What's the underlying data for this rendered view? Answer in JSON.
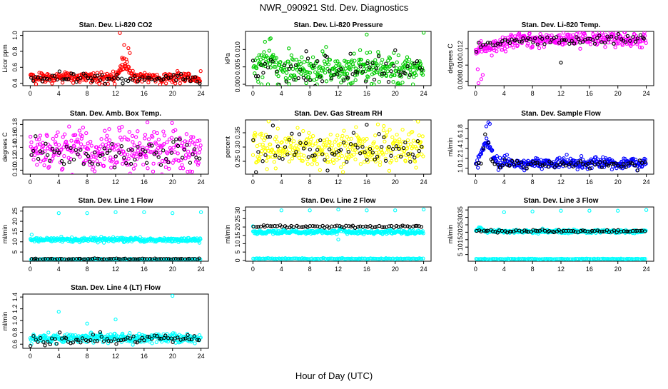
{
  "figure_title": "NWR_090921  Std. Dev. Diagnostics",
  "xlabel": "Hour of Day (UTC)",
  "colors": {
    "red": "#ff0000",
    "green": "#00cc00",
    "magenta": "#ff00ff",
    "yellow": "#ffff00",
    "blue": "#0000ff",
    "cyan": "#00ffff",
    "black": "#000000"
  },
  "chart_data": [
    {
      "type": "scatter",
      "title": "Stan. Dev. Li-820 CO2",
      "ylabel": "Licor ppm",
      "xlim": [
        0,
        24
      ],
      "ylim": [
        0.37,
        1.05
      ],
      "x_ticks": [
        "0",
        "4",
        "8",
        "12",
        "16",
        "20",
        "24"
      ],
      "y_ticks": [
        0.4,
        0.6,
        0.8,
        1.0
      ],
      "y_tick_labels": [
        "0.4",
        "0.6",
        "0.8",
        "1.0"
      ],
      "series": [
        {
          "name": "sample",
          "color": "#ff0000",
          "n": 330,
          "base": 0.47,
          "noise": 0.035,
          "features": [
            {
              "type": "bump",
              "center": 13.2,
              "width": 0.8,
              "amp": 0.18
            }
          ],
          "outliers": [
            [
              12.6,
              1.03
            ],
            [
              13.2,
              0.88
            ],
            [
              13.8,
              0.84
            ],
            [
              14.0,
              0.78
            ],
            [
              12.9,
              0.72
            ],
            [
              13.5,
              0.7
            ]
          ]
        },
        {
          "name": "reference",
          "color": "#000000",
          "n": 72,
          "base": 0.46,
          "noise": 0.03,
          "features": [],
          "outliers": []
        }
      ]
    },
    {
      "type": "scatter",
      "title": "Stan. Dev. Li-820 Pressure",
      "ylabel": "kPa",
      "xlim": [
        0,
        24
      ],
      "ylim": [
        -0.0004,
        0.0152
      ],
      "x_ticks": [
        "0",
        "4",
        "8",
        "12",
        "16",
        "20",
        "24"
      ],
      "y_ticks": [
        0.0,
        0.005,
        0.01
      ],
      "y_tick_labels": [
        "0.000",
        "0.005",
        "0.010"
      ],
      "series": [
        {
          "name": "sample",
          "color": "#00cc00",
          "n": 330,
          "base": 0.0045,
          "noise": 0.0026,
          "features": [
            {
              "type": "bump",
              "center": 2.0,
              "width": 1.4,
              "amp": 0.0035
            }
          ],
          "outliers": [
            [
              2.5,
              0.0132
            ],
            [
              16.0,
              0.0143
            ],
            [
              24.0,
              0.0148
            ],
            [
              1.2,
              0.0
            ],
            [
              3.5,
              0.0
            ],
            [
              9.0,
              0.0
            ],
            [
              13.5,
              0.0
            ],
            [
              17.0,
              0.0
            ],
            [
              20.5,
              0.0
            ],
            [
              22.5,
              0.0
            ]
          ]
        },
        {
          "name": "reference",
          "color": "#000000",
          "n": 72,
          "base": 0.004,
          "noise": 0.0025,
          "features": [],
          "outliers": [
            [
              7.5,
              0.0095
            ]
          ]
        }
      ]
    },
    {
      "type": "scatter",
      "title": "Stan. Dev. Li-820 Temp.",
      "ylabel": "degrees C",
      "xlim": [
        0,
        24
      ],
      "ylim": [
        0.0075,
        0.0141
      ],
      "x_ticks": [
        "0",
        "4",
        "8",
        "12",
        "16",
        "20",
        "24"
      ],
      "y_ticks": [
        0.008,
        0.01,
        0.012
      ],
      "y_tick_labels": [
        "0.008",
        "0.010",
        "0.012"
      ],
      "series": [
        {
          "name": "sample",
          "color": "#ff00ff",
          "n": 330,
          "base": 0.0131,
          "noise": 0.00045,
          "features": [
            {
              "type": "ramp",
              "from": 0.0,
              "to": 6.0,
              "start": 0.0119,
              "end": 0.0131
            }
          ],
          "outliers": [
            [
              0.4,
              0.0078
            ],
            [
              0.8,
              0.0083
            ],
            [
              1.0,
              0.0088
            ],
            [
              0.3,
              0.0095
            ]
          ]
        },
        {
          "name": "reference",
          "color": "#000000",
          "n": 72,
          "base": 0.0131,
          "noise": 0.0003,
          "features": [
            {
              "type": "ramp",
              "from": 0.0,
              "to": 6.0,
              "start": 0.0121,
              "end": 0.0131
            }
          ],
          "outliers": [
            [
              12.0,
              0.0103
            ]
          ]
        }
      ]
    },
    {
      "type": "scatter",
      "title": "Stan. Dev. Amb. Box Temp.",
      "ylabel": "degrees C",
      "xlim": [
        0,
        24
      ],
      "ylim": [
        0.093,
        0.188
      ],
      "x_ticks": [
        "0",
        "4",
        "8",
        "12",
        "16",
        "20",
        "24"
      ],
      "y_ticks": [
        0.1,
        0.12,
        0.14,
        0.16,
        0.18
      ],
      "y_tick_labels": [
        "0.10",
        "0.12",
        "0.14",
        "0.16",
        "0.18"
      ],
      "series": [
        {
          "name": "sample",
          "color": "#ff00ff",
          "n": 330,
          "base": 0.136,
          "noise": 0.018,
          "features": [],
          "outliers": []
        },
        {
          "name": "reference",
          "color": "#000000",
          "n": 72,
          "base": 0.13,
          "noise": 0.012,
          "features": [],
          "outliers": []
        }
      ]
    },
    {
      "type": "scatter",
      "title": "Stan. Dev. Gas Stream RH",
      "ylabel": "percent",
      "xlim": [
        0,
        24
      ],
      "ylim": [
        0.205,
        0.395
      ],
      "x_ticks": [
        "0",
        "4",
        "8",
        "12",
        "16",
        "20",
        "24"
      ],
      "y_ticks": [
        0.25,
        0.3,
        0.35
      ],
      "y_tick_labels": [
        "0.25",
        "0.30",
        "0.35"
      ],
      "series": [
        {
          "name": "sample",
          "color": "#ffff00",
          "n": 330,
          "base": 0.295,
          "noise": 0.035,
          "features": [],
          "outliers": [
            [
              2.2,
              0.39
            ]
          ]
        },
        {
          "name": "reference",
          "color": "#000000",
          "n": 72,
          "base": 0.29,
          "noise": 0.03,
          "features": [],
          "outliers": [
            [
              16.0,
              0.378
            ]
          ]
        }
      ]
    },
    {
      "type": "scatter",
      "title": "Stan. Dev. Sample Flow",
      "ylabel": "ml/min",
      "xlim": [
        0,
        24
      ],
      "ylim": [
        0.88,
        1.98
      ],
      "x_ticks": [
        "0",
        "4",
        "8",
        "12",
        "16",
        "20",
        "24"
      ],
      "y_ticks": [
        1.0,
        1.2,
        1.4,
        1.6,
        1.8
      ],
      "y_tick_labels": [
        "1.0",
        "1.2",
        "1.4",
        "1.6",
        "1.8"
      ],
      "series": [
        {
          "name": "sample",
          "color": "#0000ff",
          "n": 330,
          "base": 1.1,
          "noise": 0.055,
          "features": [
            {
              "type": "bump",
              "center": 1.6,
              "width": 0.9,
              "amp": 0.42
            }
          ],
          "outliers": [
            [
              1.8,
              1.93
            ],
            [
              1.5,
              1.85
            ],
            [
              2.0,
              1.9
            ]
          ]
        },
        {
          "name": "reference",
          "color": "#000000",
          "n": 72,
          "base": 1.09,
          "noise": 0.045,
          "features": [
            {
              "type": "bump",
              "center": 1.5,
              "width": 0.5,
              "amp": 0.6
            }
          ],
          "outliers": []
        }
      ]
    },
    {
      "type": "scatter",
      "title": "Stan. Dev. Line 1 Flow",
      "ylabel": "ml/min",
      "xlim": [
        0,
        24
      ],
      "ylim": [
        0.5,
        27
      ],
      "x_ticks": [
        "0",
        "4",
        "8",
        "12",
        "16",
        "20",
        "24"
      ],
      "y_ticks": [
        5,
        10,
        15,
        20,
        25
      ],
      "y_tick_labels": [
        "5",
        "10",
        "15",
        "20",
        "25"
      ],
      "series": [
        {
          "name": "sample",
          "color": "#00ffff",
          "n": 330,
          "base": 11.0,
          "noise": 0.55,
          "features": [],
          "outliers": [
            [
              0.2,
              13.5
            ],
            [
              4.0,
              24.0
            ],
            [
              8.0,
              24.0
            ],
            [
              12.0,
              24.5
            ],
            [
              16.0,
              24.5
            ],
            [
              20.0,
              24.0
            ],
            [
              24.0,
              24.5
            ]
          ]
        },
        {
          "name": "line-low",
          "color": "#00ffff",
          "n": 140,
          "base": 1.4,
          "noise": 0.12,
          "features": [],
          "outliers": []
        },
        {
          "name": "reference",
          "color": "#000000",
          "n": 72,
          "base": 1.6,
          "noise": 0.15,
          "features": [],
          "outliers": []
        }
      ]
    },
    {
      "type": "scatter",
      "title": "Stan. Dev. Line 2 Flow",
      "ylabel": "ml/min",
      "xlim": [
        0,
        24
      ],
      "ylim": [
        -0.5,
        32
      ],
      "x_ticks": [
        "0",
        "4",
        "8",
        "12",
        "16",
        "20",
        "24"
      ],
      "y_ticks": [
        0,
        5,
        10,
        15,
        20,
        25,
        30
      ],
      "y_tick_labels": [
        "0",
        "5",
        "10",
        "15",
        "20",
        "25",
        "30"
      ],
      "series": [
        {
          "name": "sample",
          "color": "#00ffff",
          "n": 330,
          "base": 17.0,
          "noise": 0.6,
          "features": [
            {
              "type": "bump",
              "center": 12.5,
              "width": 0.4,
              "amp": 2.0
            }
          ],
          "outliers": [
            [
              0.0,
              20.5
            ],
            [
              4.0,
              30.0
            ],
            [
              8.0,
              30.0
            ],
            [
              12.0,
              30.5
            ],
            [
              16.0,
              30.0
            ],
            [
              20.0,
              30.0
            ],
            [
              24.0,
              30.5
            ],
            [
              12.0,
              12.5
            ]
          ]
        },
        {
          "name": "line-low",
          "color": "#00ffff",
          "n": 140,
          "base": 1.0,
          "noise": 0.15,
          "features": [],
          "outliers": []
        },
        {
          "name": "reference",
          "color": "#000000",
          "n": 72,
          "base": 20.3,
          "noise": 0.35,
          "features": [],
          "outliers": []
        }
      ]
    },
    {
      "type": "scatter",
      "title": "Stan. Dev. Line 3 Flow",
      "ylabel": "ml/min",
      "xlim": [
        0,
        24
      ],
      "ylim": [
        0.5,
        37
      ],
      "x_ticks": [
        "0",
        "4",
        "8",
        "12",
        "16",
        "20",
        "24"
      ],
      "y_ticks": [
        5,
        10,
        15,
        20,
        25,
        30,
        35
      ],
      "y_tick_labels": [
        "5",
        "10",
        "15",
        "20",
        "25",
        "30",
        "35"
      ],
      "series": [
        {
          "name": "sample",
          "color": "#00ffff",
          "n": 330,
          "base": 20.5,
          "noise": 0.55,
          "features": [
            {
              "type": "bump",
              "center": 0.6,
              "width": 0.5,
              "amp": 2.5
            }
          ],
          "outliers": [
            [
              4.0,
              33.5
            ],
            [
              8.0,
              34.0
            ],
            [
              12.0,
              34.5
            ],
            [
              16.0,
              34.5
            ],
            [
              20.0,
              34.5
            ],
            [
              24.0,
              35.0
            ]
          ]
        },
        {
          "name": "line-low",
          "color": "#00ffff",
          "n": 140,
          "base": 2.0,
          "noise": 0.12,
          "features": [],
          "outliers": []
        },
        {
          "name": "reference",
          "color": "#000000",
          "n": 72,
          "base": 20.8,
          "noise": 0.4,
          "features": [],
          "outliers": []
        }
      ]
    },
    {
      "type": "scatter",
      "title": "Stan. Dev. Line 4 (LT) Flow",
      "ylabel": "ml/min",
      "xlim": [
        0,
        24
      ],
      "ylim": [
        0.53,
        1.45
      ],
      "x_ticks": [
        "0",
        "4",
        "8",
        "12",
        "16",
        "20",
        "24"
      ],
      "y_ticks": [
        0.6,
        0.8,
        1.0,
        1.2,
        1.4
      ],
      "y_tick_labels": [
        "0.6",
        "0.8",
        "1.0",
        "1.2",
        "1.4"
      ],
      "series": [
        {
          "name": "sample",
          "color": "#00ffff",
          "n": 330,
          "base": 0.7,
          "noise": 0.04,
          "features": [],
          "outliers": [
            [
              4.0,
              1.15
            ],
            [
              12.0,
              1.02
            ],
            [
              20.0,
              1.42
            ],
            [
              8.0,
              0.95
            ]
          ]
        },
        {
          "name": "reference",
          "color": "#000000",
          "n": 72,
          "base": 0.68,
          "noise": 0.045,
          "features": [],
          "outliers": []
        }
      ]
    }
  ]
}
